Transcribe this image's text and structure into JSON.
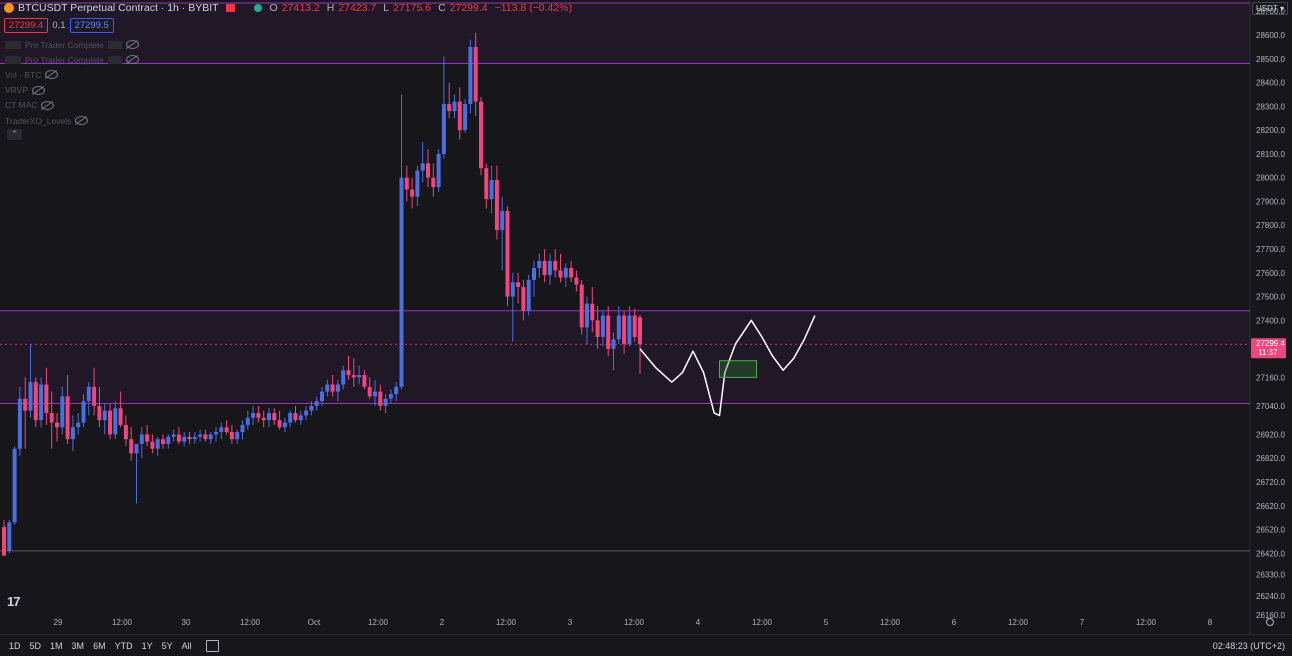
{
  "header": {
    "symbol": "BTCUSDT Perpetual Contract · 1h · BYBIT",
    "open_label": "O",
    "open": "27413.2",
    "high_label": "H",
    "high": "27423.7",
    "low_label": "L",
    "low": "27175.6",
    "close_label": "C",
    "close": "27299.4",
    "change": "−113.8 (−0.42%)"
  },
  "quote": {
    "sell": "27299.4",
    "spread": "0.1",
    "buy": "27299.5"
  },
  "indicators": [
    "Pro Trader Complete",
    "Pro Trader Complete",
    "Vol · BTC",
    "VRVP",
    "CT MAC",
    "TraderXO_Levels"
  ],
  "currency": "USDT",
  "price_badge": {
    "price": "27299.4",
    "countdown": "11:37"
  },
  "timeframes": [
    "1D",
    "5D",
    "1M",
    "3M",
    "6M",
    "YTD",
    "1Y",
    "5Y",
    "All"
  ],
  "clock": "02:48:23 (UTC+2)",
  "colors": {
    "up": "#4a6fe0",
    "down": "#f0467d",
    "zone": "#9b30c8",
    "background": "#17161b"
  },
  "chart_data": {
    "type": "candlestick",
    "y_axis_ticks": [
      26160,
      26240,
      26330,
      26420,
      26520,
      26620,
      26720,
      26820,
      26920,
      27040,
      27160,
      27299.4,
      27400,
      27500,
      27600,
      27700,
      27800,
      27900,
      28000,
      28100,
      28200,
      28300,
      28400,
      28500,
      28600,
      28700
    ],
    "y_range": [
      26130,
      28800
    ],
    "x_axis_labels": [
      "29",
      "12:00",
      "30",
      "12:00",
      "Oct",
      "12:00",
      "2",
      "12:00",
      "3",
      "12:00",
      "4",
      "12:00",
      "5",
      "12:00",
      "6",
      "12:00",
      "7",
      "12:00",
      "8"
    ],
    "candles": [
      [
        26530,
        26560,
        26410,
        26410
      ],
      [
        26430,
        26560,
        26420,
        26550
      ],
      [
        26550,
        26870,
        26540,
        26860
      ],
      [
        26860,
        27120,
        26830,
        27070
      ],
      [
        27070,
        27160,
        26860,
        27020
      ],
      [
        27020,
        27300,
        26990,
        27140
      ],
      [
        27140,
        27160,
        26950,
        26980
      ],
      [
        26980,
        27160,
        26950,
        27130
      ],
      [
        27130,
        27200,
        26960,
        27010
      ],
      [
        27010,
        27100,
        26860,
        26970
      ],
      [
        26970,
        27010,
        26890,
        26950
      ],
      [
        26950,
        27120,
        26920,
        27080
      ],
      [
        27080,
        27170,
        26880,
        26900
      ],
      [
        26900,
        27000,
        26850,
        26950
      ],
      [
        26950,
        27010,
        26920,
        26970
      ],
      [
        26970,
        27090,
        26950,
        27060
      ],
      [
        27060,
        27140,
        27000,
        27120
      ],
      [
        27120,
        27200,
        27000,
        27040
      ],
      [
        27040,
        27120,
        26950,
        26980
      ],
      [
        26980,
        27050,
        26920,
        27020
      ],
      [
        27020,
        27050,
        26900,
        26920
      ],
      [
        26920,
        27060,
        26900,
        27030
      ],
      [
        27030,
        27100,
        26950,
        26960
      ],
      [
        26960,
        27000,
        26870,
        26900
      ],
      [
        26900,
        26950,
        26810,
        26840
      ],
      [
        26840,
        26880,
        26630,
        26880
      ],
      [
        26880,
        26950,
        26820,
        26920
      ],
      [
        26920,
        26960,
        26870,
        26890
      ],
      [
        26890,
        26920,
        26840,
        26860
      ],
      [
        26860,
        26910,
        26830,
        26900
      ],
      [
        26900,
        26920,
        26860,
        26880
      ],
      [
        26880,
        26920,
        26860,
        26910
      ],
      [
        26910,
        26940,
        26890,
        26920
      ],
      [
        26920,
        26950,
        26880,
        26890
      ],
      [
        26890,
        26930,
        26870,
        26910
      ],
      [
        26910,
        26930,
        26880,
        26900
      ],
      [
        26900,
        26930,
        26880,
        26910
      ],
      [
        26910,
        26940,
        26890,
        26920
      ],
      [
        26920,
        26940,
        26890,
        26900
      ],
      [
        26900,
        26930,
        26880,
        26920
      ],
      [
        26920,
        26950,
        26890,
        26930
      ],
      [
        26930,
        26970,
        26900,
        26950
      ],
      [
        26950,
        26980,
        26920,
        26930
      ],
      [
        26930,
        26960,
        26880,
        26900
      ],
      [
        26900,
        26940,
        26880,
        26930
      ],
      [
        26930,
        26980,
        26900,
        26960
      ],
      [
        26960,
        27020,
        26940,
        26990
      ],
      [
        26990,
        27040,
        26960,
        27010
      ],
      [
        27010,
        27040,
        26970,
        26990
      ],
      [
        26990,
        27020,
        26950,
        26980
      ],
      [
        26980,
        27030,
        26950,
        27010
      ],
      [
        27010,
        27030,
        26960,
        26980
      ],
      [
        26980,
        27020,
        26940,
        26950
      ],
      [
        26950,
        26990,
        26930,
        26970
      ],
      [
        26970,
        27020,
        26950,
        27010
      ],
      [
        27010,
        27040,
        26970,
        26980
      ],
      [
        26980,
        27020,
        26960,
        27000
      ],
      [
        27000,
        27040,
        26980,
        27020
      ],
      [
        27020,
        27060,
        27000,
        27040
      ],
      [
        27040,
        27080,
        27020,
        27060
      ],
      [
        27060,
        27120,
        27040,
        27100
      ],
      [
        27100,
        27150,
        27080,
        27130
      ],
      [
        27130,
        27170,
        27080,
        27100
      ],
      [
        27100,
        27150,
        27060,
        27130
      ],
      [
        27130,
        27210,
        27110,
        27190
      ],
      [
        27190,
        27250,
        27150,
        27170
      ],
      [
        27170,
        27240,
        27120,
        27160
      ],
      [
        27160,
        27210,
        27130,
        27170
      ],
      [
        27170,
        27190,
        27110,
        27120
      ],
      [
        27120,
        27160,
        27070,
        27080
      ],
      [
        27080,
        27150,
        27040,
        27100
      ],
      [
        27100,
        27130,
        27020,
        27040
      ],
      [
        27040,
        27090,
        27010,
        27070
      ],
      [
        27070,
        27110,
        27050,
        27090
      ],
      [
        27090,
        27140,
        27060,
        27120
      ],
      [
        27120,
        28350,
        27110,
        28000
      ],
      [
        28000,
        28050,
        27900,
        27950
      ],
      [
        27950,
        28000,
        27870,
        27920
      ],
      [
        27920,
        28050,
        27880,
        28030
      ],
      [
        28030,
        28150,
        27980,
        28060
      ],
      [
        28060,
        28120,
        27960,
        28000
      ],
      [
        28000,
        28060,
        27920,
        27960
      ],
      [
        27960,
        28120,
        27940,
        28100
      ],
      [
        28100,
        28510,
        28080,
        28310
      ],
      [
        28310,
        28400,
        28250,
        28280
      ],
      [
        28280,
        28350,
        28250,
        28320
      ],
      [
        28320,
        28380,
        28160,
        28200
      ],
      [
        28200,
        28330,
        28190,
        28310
      ],
      [
        28310,
        28580,
        28270,
        28550
      ],
      [
        28550,
        28610,
        28260,
        28320
      ],
      [
        28320,
        28340,
        28010,
        28040
      ],
      [
        28040,
        28060,
        27870,
        27910
      ],
      [
        27910,
        28050,
        27850,
        27990
      ],
      [
        27990,
        28050,
        27740,
        27780
      ],
      [
        27780,
        27920,
        27610,
        27860
      ],
      [
        27860,
        27880,
        27460,
        27500
      ],
      [
        27500,
        27600,
        27310,
        27560
      ],
      [
        27560,
        27600,
        27470,
        27540
      ],
      [
        27540,
        27570,
        27400,
        27440
      ],
      [
        27440,
        27590,
        27420,
        27570
      ],
      [
        27570,
        27650,
        27500,
        27620
      ],
      [
        27620,
        27680,
        27580,
        27650
      ],
      [
        27650,
        27700,
        27560,
        27590
      ],
      [
        27590,
        27680,
        27550,
        27650
      ],
      [
        27650,
        27700,
        27580,
        27610
      ],
      [
        27610,
        27680,
        27560,
        27580
      ],
      [
        27580,
        27640,
        27540,
        27620
      ],
      [
        27620,
        27650,
        27560,
        27580
      ],
      [
        27580,
        27610,
        27520,
        27550
      ],
      [
        27550,
        27570,
        27340,
        27370
      ],
      [
        27370,
        27500,
        27300,
        27470
      ],
      [
        27470,
        27540,
        27350,
        27400
      ],
      [
        27400,
        27460,
        27280,
        27330
      ],
      [
        27330,
        27440,
        27290,
        27420
      ],
      [
        27420,
        27460,
        27250,
        27280
      ],
      [
        27280,
        27350,
        27190,
        27320
      ],
      [
        27320,
        27460,
        27300,
        27420
      ],
      [
        27420,
        27440,
        27260,
        27300
      ],
      [
        27300,
        27460,
        27290,
        27420
      ],
      [
        27420,
        27450,
        27310,
        27330
      ],
      [
        27413.2,
        27423.7,
        27175.6,
        27299.4
      ]
    ],
    "zones": [
      {
        "from": 28480,
        "to": 28800
      },
      {
        "from": 27050,
        "to": 27440
      }
    ],
    "level_line": 26430,
    "current_price": 27299.4,
    "target_box": {
      "from": 27160,
      "to": 27230
    },
    "projection": [
      [
        27280,
        0
      ],
      [
        27200,
        3
      ],
      [
        27140,
        6
      ],
      [
        27180,
        8
      ],
      [
        27270,
        10
      ],
      [
        27180,
        12
      ],
      [
        27010,
        14
      ],
      [
        27000,
        15
      ],
      [
        27180,
        16
      ],
      [
        27300,
        18
      ],
      [
        27400,
        21
      ],
      [
        27330,
        23
      ],
      [
        27250,
        25
      ],
      [
        27190,
        27
      ],
      [
        27240,
        29
      ],
      [
        27320,
        31
      ],
      [
        27420,
        33
      ]
    ]
  }
}
